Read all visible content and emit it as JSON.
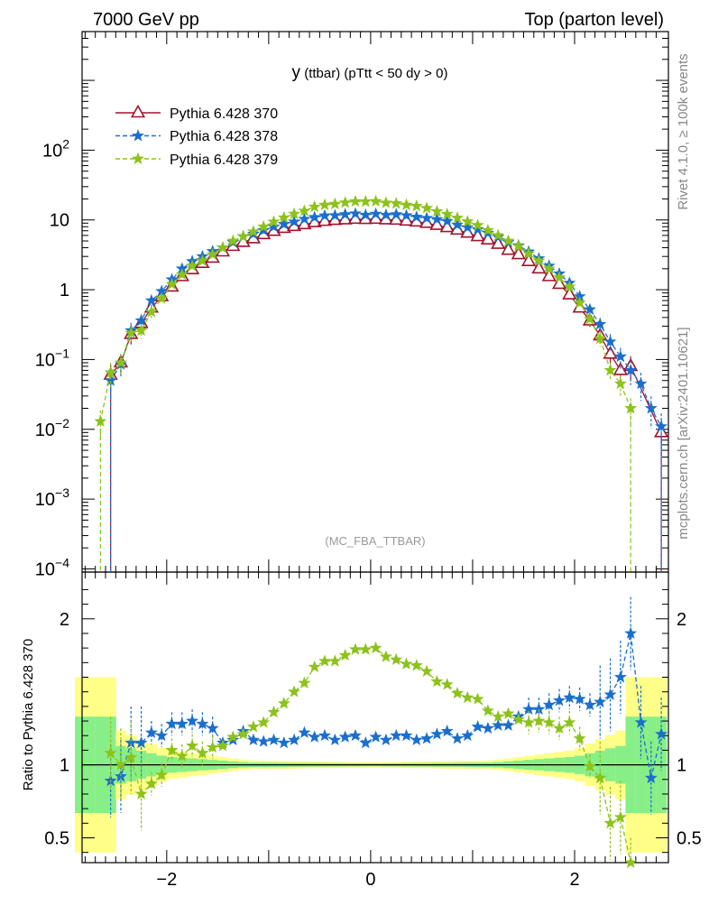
{
  "header": {
    "left": "7000 GeV pp",
    "right": "Top (parton level)"
  },
  "side_texts": {
    "rivet": "Rivet 4.1.0, ≥ 100k events",
    "mcplots": "mcplots.cern.ch [arXiv:2401.10621]"
  },
  "chart_data": {
    "type": "line",
    "title_main": "y",
    "title_sub": " (ttbar) (pTtt < 50 dy > 0)",
    "watermark": "(MC_FBA_TTBAR)",
    "ratio_ylabel": "Ratio to Pythia 6.428 370",
    "x_ticks": [
      "−2",
      "0",
      "2"
    ],
    "xlim": [
      -2.83,
      2.92
    ],
    "upper": {
      "yscale": "log",
      "ylim": [
        9e-05,
        5000
      ],
      "y_ticks": [
        {
          "base": "10",
          "exp": "2",
          "v": 100
        },
        {
          "base": "10",
          "exp": "",
          "v": 10
        },
        {
          "base": "1",
          "exp": "",
          "v": 1
        },
        {
          "base": "10",
          "exp": "−1",
          "v": 0.1
        },
        {
          "base": "10",
          "exp": "−2",
          "v": 0.01
        },
        {
          "base": "10",
          "exp": "−3",
          "v": 0.001
        },
        {
          "base": "10",
          "exp": "−4",
          "v": 0.0001
        }
      ]
    },
    "lower": {
      "ylim": [
        0.33,
        2.32
      ],
      "y_ticks": [
        "0.5",
        "1",
        "2"
      ],
      "y_tick_values": [
        0.5,
        1,
        2
      ],
      "reference_line": 1
    },
    "x": [
      -2.85,
      -2.75,
      -2.65,
      -2.55,
      -2.45,
      -2.35,
      -2.25,
      -2.15,
      -2.05,
      -1.95,
      -1.85,
      -1.75,
      -1.65,
      -1.55,
      -1.45,
      -1.35,
      -1.25,
      -1.15,
      -1.05,
      -0.95,
      -0.85,
      -0.75,
      -0.65,
      -0.55,
      -0.45,
      -0.35,
      -0.25,
      -0.15,
      -0.05,
      0.05,
      0.15,
      0.25,
      0.35,
      0.45,
      0.55,
      0.65,
      0.75,
      0.85,
      0.95,
      1.05,
      1.15,
      1.25,
      1.35,
      1.45,
      1.55,
      1.65,
      1.75,
      1.85,
      1.95,
      2.05,
      2.15,
      2.25,
      2.35,
      2.45,
      2.55,
      2.65,
      2.75,
      2.85
    ],
    "series": [
      {
        "name": "Pythia 6.428 370",
        "color": "#a0132d",
        "marker": "triangle-open",
        "style": "solid",
        "values": [
          null,
          null,
          null,
          0.06,
          0.09,
          0.23,
          0.33,
          0.55,
          0.8,
          1.1,
          1.55,
          1.95,
          2.4,
          2.85,
          3.5,
          4.2,
          4.8,
          5.4,
          6.2,
          6.9,
          7.6,
          8.1,
          8.6,
          9.2,
          9.6,
          9.9,
          10.1,
          10.3,
          10.2,
          10.3,
          10.1,
          10.0,
          9.7,
          9.4,
          9.0,
          8.4,
          7.8,
          7.2,
          6.5,
          5.8,
          5.2,
          4.5,
          3.7,
          3.2,
          2.55,
          2.0,
          1.55,
          1.2,
          0.85,
          0.55,
          0.36,
          0.22,
          0.12,
          0.07,
          0.08,
          null,
          null,
          0.009
        ]
      },
      {
        "name": "Pythia 6.428 378",
        "color": "#1a6fcc",
        "marker": "star",
        "style": "dashed",
        "values": [
          null,
          null,
          null,
          0.05,
          0.085,
          0.26,
          0.36,
          0.7,
          0.95,
          1.4,
          2.0,
          2.55,
          3.0,
          3.55,
          4.0,
          4.8,
          5.8,
          6.3,
          7.1,
          8.0,
          8.7,
          9.4,
          10.3,
          10.9,
          11.5,
          11.6,
          12.0,
          12.3,
          11.8,
          12.2,
          11.8,
          12.0,
          11.6,
          11.0,
          10.6,
          10.2,
          9.6,
          8.5,
          7.8,
          7.3,
          6.5,
          5.7,
          4.8,
          4.3,
          3.5,
          2.8,
          2.2,
          1.7,
          1.25,
          0.8,
          0.52,
          0.32,
          0.18,
          0.11,
          0.07,
          0.045,
          0.02,
          0.011
        ]
      },
      {
        "name": "Pythia 6.428 379",
        "color": "#8cc21a",
        "marker": "star",
        "style": "dashed",
        "values": [
          null,
          null,
          0.013,
          0.065,
          0.09,
          0.24,
          0.26,
          0.48,
          0.75,
          1.2,
          1.65,
          2.2,
          2.6,
          3.2,
          4.0,
          5.0,
          5.8,
          6.8,
          8.0,
          9.4,
          10.8,
          12.2,
          13.5,
          15.4,
          16.4,
          16.9,
          17.7,
          18.4,
          18.3,
          18.5,
          17.6,
          17.2,
          16.4,
          15.8,
          14.8,
          13.2,
          12.1,
          10.7,
          9.5,
          8.4,
          7.1,
          6.0,
          5.0,
          4.2,
          3.3,
          2.6,
          2.0,
          1.5,
          1.1,
          0.65,
          0.38,
          0.2,
          0.07,
          0.045,
          0.02,
          null,
          null,
          null
        ]
      }
    ],
    "ratio_series": [
      {
        "name": "Pythia 6.428 378",
        "values": [
          null,
          null,
          null,
          0.89,
          0.92,
          1.15,
          1.15,
          1.22,
          1.2,
          1.28,
          1.28,
          1.3,
          1.28,
          1.25,
          1.15,
          1.17,
          1.23,
          1.17,
          1.16,
          1.17,
          1.15,
          1.17,
          1.22,
          1.19,
          1.2,
          1.17,
          1.19,
          1.2,
          1.15,
          1.19,
          1.17,
          1.2,
          1.2,
          1.17,
          1.18,
          1.21,
          1.23,
          1.18,
          1.2,
          1.26,
          1.25,
          1.27,
          1.27,
          1.33,
          1.38,
          1.38,
          1.41,
          1.44,
          1.46,
          1.45,
          1.41,
          1.43,
          1.48,
          1.6,
          1.9,
          1.29,
          0.91,
          1.21
        ]
      },
      {
        "name": "Pythia 6.428 379",
        "values": [
          null,
          null,
          null,
          1.08,
          1.0,
          1.05,
          0.8,
          0.87,
          0.93,
          1.1,
          1.06,
          1.13,
          1.08,
          1.12,
          1.13,
          1.19,
          1.21,
          1.26,
          1.29,
          1.36,
          1.42,
          1.5,
          1.56,
          1.67,
          1.71,
          1.71,
          1.75,
          1.79,
          1.79,
          1.8,
          1.74,
          1.72,
          1.69,
          1.68,
          1.64,
          1.57,
          1.55,
          1.49,
          1.46,
          1.45,
          1.37,
          1.33,
          1.35,
          1.31,
          1.29,
          1.3,
          1.29,
          1.25,
          1.29,
          1.18,
          0.99,
          0.91,
          0.6,
          0.64,
          0.25,
          null,
          null,
          null
        ]
      }
    ]
  }
}
